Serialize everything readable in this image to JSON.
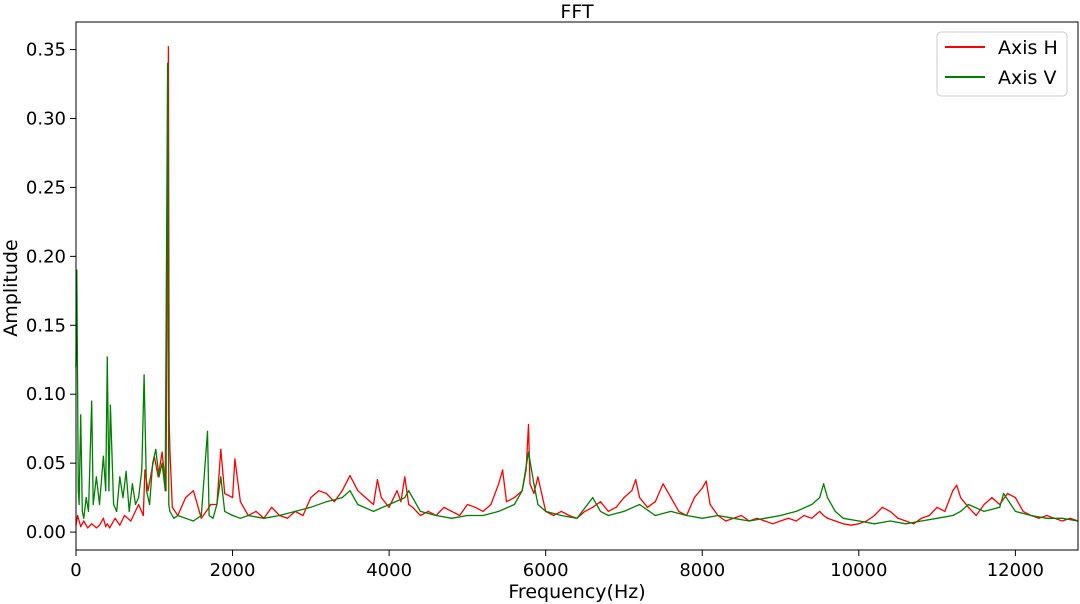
{
  "chart_data": {
    "type": "line",
    "title": "FFT",
    "xlabel": "Frequency(Hz)",
    "ylabel": "Amplitude",
    "xlim": [
      0,
      12800
    ],
    "ylim": [
      -0.013,
      0.37
    ],
    "xticks": [
      0,
      2000,
      4000,
      6000,
      8000,
      10000,
      12000
    ],
    "xtick_labels": [
      "0",
      "2000",
      "4000",
      "6000",
      "8000",
      "10000",
      "12000"
    ],
    "yticks": [
      0.0,
      0.05,
      0.1,
      0.15,
      0.2,
      0.25,
      0.3,
      0.35
    ],
    "ytick_labels": [
      "0.00",
      "0.05",
      "0.10",
      "0.15",
      "0.20",
      "0.25",
      "0.30",
      "0.35"
    ],
    "grid": false,
    "legend_position": "top-right",
    "series": [
      {
        "name": "Axis H",
        "color": "#ff0000",
        "x": [
          0,
          20,
          60,
          100,
          150,
          200,
          260,
          300,
          350,
          380,
          400,
          430,
          500,
          560,
          620,
          700,
          800,
          860,
          880,
          920,
          1000,
          1050,
          1100,
          1150,
          1180,
          1190,
          1200,
          1230,
          1300,
          1400,
          1500,
          1600,
          1700,
          1720,
          1800,
          1850,
          1900,
          2000,
          2030,
          2100,
          2200,
          2300,
          2400,
          2500,
          2600,
          2700,
          2800,
          2900,
          3000,
          3100,
          3200,
          3300,
          3400,
          3500,
          3600,
          3700,
          3800,
          3850,
          3900,
          4000,
          4100,
          4150,
          4200,
          4250,
          4300,
          4400,
          4500,
          4600,
          4700,
          4800,
          4900,
          5000,
          5100,
          5200,
          5300,
          5400,
          5450,
          5500,
          5600,
          5700,
          5750,
          5780,
          5800,
          5850,
          5900,
          6000,
          6100,
          6200,
          6300,
          6400,
          6500,
          6600,
          6700,
          6800,
          6900,
          7000,
          7100,
          7150,
          7200,
          7300,
          7400,
          7500,
          7550,
          7600,
          7700,
          7800,
          7900,
          8000,
          8050,
          8100,
          8200,
          8300,
          8400,
          8500,
          8600,
          8700,
          8800,
          8900,
          9000,
          9100,
          9200,
          9300,
          9400,
          9500,
          9550,
          9600,
          9700,
          9800,
          9900,
          10000,
          10100,
          10200,
          10300,
          10400,
          10500,
          10600,
          10700,
          10800,
          10900,
          11000,
          11100,
          11200,
          11250,
          11300,
          11400,
          11500,
          11600,
          11700,
          11800,
          11900,
          12000,
          12100,
          12200,
          12300,
          12400,
          12500,
          12600,
          12700,
          12800
        ],
        "values": [
          0.005,
          0.012,
          0.004,
          0.008,
          0.003,
          0.006,
          0.003,
          0.005,
          0.01,
          0.004,
          0.006,
          0.003,
          0.01,
          0.005,
          0.012,
          0.008,
          0.02,
          0.012,
          0.045,
          0.03,
          0.055,
          0.04,
          0.058,
          0.03,
          0.352,
          0.08,
          0.06,
          0.018,
          0.012,
          0.025,
          0.03,
          0.01,
          0.018,
          0.02,
          0.02,
          0.06,
          0.028,
          0.025,
          0.053,
          0.022,
          0.012,
          0.015,
          0.01,
          0.018,
          0.012,
          0.01,
          0.015,
          0.012,
          0.025,
          0.03,
          0.028,
          0.022,
          0.03,
          0.041,
          0.03,
          0.025,
          0.02,
          0.038,
          0.025,
          0.018,
          0.03,
          0.022,
          0.04,
          0.02,
          0.018,
          0.012,
          0.015,
          0.012,
          0.018,
          0.015,
          0.012,
          0.02,
          0.018,
          0.015,
          0.02,
          0.035,
          0.045,
          0.022,
          0.025,
          0.03,
          0.045,
          0.078,
          0.035,
          0.028,
          0.04,
          0.015,
          0.012,
          0.015,
          0.012,
          0.01,
          0.015,
          0.018,
          0.022,
          0.015,
          0.018,
          0.025,
          0.03,
          0.038,
          0.025,
          0.018,
          0.022,
          0.035,
          0.03,
          0.025,
          0.015,
          0.012,
          0.025,
          0.032,
          0.037,
          0.02,
          0.012,
          0.008,
          0.01,
          0.012,
          0.008,
          0.01,
          0.008,
          0.006,
          0.008,
          0.01,
          0.008,
          0.012,
          0.01,
          0.015,
          0.012,
          0.01,
          0.008,
          0.006,
          0.005,
          0.006,
          0.008,
          0.012,
          0.018,
          0.015,
          0.01,
          0.008,
          0.006,
          0.01,
          0.012,
          0.018,
          0.015,
          0.03,
          0.034,
          0.025,
          0.018,
          0.012,
          0.02,
          0.025,
          0.02,
          0.028,
          0.025,
          0.015,
          0.012,
          0.01,
          0.012,
          0.01,
          0.008,
          0.01,
          0.008
        ]
      },
      {
        "name": "Axis V",
        "color": "#008000",
        "x": [
          0,
          10,
          30,
          40,
          60,
          80,
          100,
          130,
          160,
          200,
          220,
          260,
          300,
          350,
          380,
          400,
          420,
          440,
          480,
          520,
          560,
          600,
          640,
          680,
          720,
          760,
          800,
          840,
          870,
          900,
          940,
          980,
          1020,
          1060,
          1100,
          1140,
          1170,
          1185,
          1200,
          1250,
          1300,
          1400,
          1500,
          1600,
          1680,
          1700,
          1750,
          1800,
          1850,
          1900,
          2000,
          2100,
          2200,
          2400,
          2600,
          2800,
          3000,
          3200,
          3400,
          3500,
          3600,
          3800,
          4000,
          4200,
          4250,
          4400,
          4600,
          4800,
          5000,
          5200,
          5400,
          5600,
          5700,
          5780,
          5850,
          5900,
          6000,
          6200,
          6400,
          6600,
          6700,
          6800,
          7000,
          7200,
          7400,
          7600,
          7800,
          8000,
          8200,
          8400,
          8600,
          8800,
          9000,
          9200,
          9400,
          9500,
          9550,
          9600,
          9700,
          9800,
          10000,
          10200,
          10400,
          10600,
          10800,
          11000,
          11200,
          11300,
          11400,
          11600,
          11800,
          11850,
          12000,
          12200,
          12400,
          12600,
          12800
        ],
        "values": [
          0.12,
          0.19,
          0.03,
          0.02,
          0.085,
          0.015,
          0.01,
          0.025,
          0.015,
          0.095,
          0.02,
          0.04,
          0.02,
          0.055,
          0.03,
          0.127,
          0.03,
          0.092,
          0.02,
          0.015,
          0.04,
          0.025,
          0.044,
          0.015,
          0.035,
          0.02,
          0.025,
          0.045,
          0.114,
          0.03,
          0.02,
          0.05,
          0.06,
          0.04,
          0.05,
          0.03,
          0.34,
          0.02,
          0.015,
          0.01,
          0.012,
          0.01,
          0.008,
          0.012,
          0.073,
          0.012,
          0.01,
          0.02,
          0.04,
          0.015,
          0.012,
          0.01,
          0.012,
          0.01,
          0.012,
          0.015,
          0.018,
          0.022,
          0.025,
          0.03,
          0.02,
          0.015,
          0.02,
          0.025,
          0.03,
          0.015,
          0.012,
          0.01,
          0.012,
          0.012,
          0.015,
          0.02,
          0.03,
          0.058,
          0.035,
          0.02,
          0.015,
          0.012,
          0.01,
          0.025,
          0.015,
          0.012,
          0.015,
          0.02,
          0.012,
          0.015,
          0.012,
          0.01,
          0.012,
          0.01,
          0.008,
          0.01,
          0.012,
          0.015,
          0.02,
          0.025,
          0.035,
          0.025,
          0.015,
          0.01,
          0.008,
          0.006,
          0.008,
          0.006,
          0.008,
          0.01,
          0.012,
          0.015,
          0.02,
          0.015,
          0.018,
          0.028,
          0.015,
          0.012,
          0.01,
          0.01,
          0.008
        ]
      }
    ]
  }
}
